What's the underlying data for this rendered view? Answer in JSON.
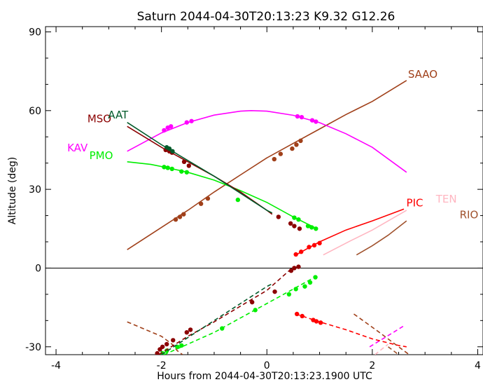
{
  "chart_data": {
    "type": "line",
    "title": "Saturn 2044-04-30T20:13:23  K9.32  G12.26",
    "xlabel": "Hours from 2044-04-30T20:13:23.1900 UTC",
    "ylabel": "Altitude (deg)",
    "xlim": [
      -4.2,
      4.1
    ],
    "ylim": [
      -33,
      92
    ],
    "xticks": [
      -4,
      -2,
      0,
      2,
      4
    ],
    "yticks": [
      -30,
      0,
      30,
      60,
      90
    ],
    "grid": false,
    "reference_line_y": 0,
    "series": [
      {
        "name": "SAAO",
        "color": "#a0401a",
        "label_at": [
          2.65,
          72.5
        ],
        "points": [
          [
            -2.65,
            7
          ],
          [
            -2.0,
            15.5
          ],
          [
            -1.5,
            22
          ],
          [
            -1.0,
            29
          ],
          [
            -0.5,
            35.5
          ],
          [
            0.0,
            42
          ],
          [
            0.5,
            47.5
          ],
          [
            1.0,
            53
          ],
          [
            1.5,
            58.5
          ],
          [
            2.0,
            63.5
          ],
          [
            2.65,
            71.5
          ]
        ],
        "dots": [
          [
            -1.73,
            18.5
          ],
          [
            -1.65,
            19.5
          ],
          [
            -1.58,
            20.5
          ],
          [
            -1.25,
            24.5
          ],
          [
            -1.12,
            26.5
          ],
          [
            0.14,
            41.5
          ],
          [
            0.26,
            43.5
          ],
          [
            0.48,
            45.5
          ],
          [
            0.56,
            47
          ],
          [
            0.64,
            48.5
          ]
        ]
      },
      {
        "name": "",
        "color": "#a0401a",
        "style": "dashed",
        "points": [
          [
            -2.65,
            -20.5
          ],
          [
            -2.0,
            -26
          ],
          [
            -1.8,
            -29
          ],
          [
            -1.7,
            -31.5
          ],
          [
            -1.6,
            -33
          ]
        ]
      },
      {
        "name": "",
        "color": "#a0401a",
        "style": "dashed",
        "points": [
          [
            1.65,
            -17.5
          ],
          [
            2.1,
            -24
          ],
          [
            2.4,
            -28.5
          ],
          [
            2.6,
            -31.5
          ],
          [
            2.7,
            -33
          ]
        ]
      },
      {
        "name": "KAV",
        "color": "#ff00ff",
        "label_at": [
          -3.4,
          44.5
        ],
        "points": [
          [
            -2.65,
            44.5
          ],
          [
            -2.0,
            51.5
          ],
          [
            -1.5,
            55.5
          ],
          [
            -1.0,
            58.3
          ],
          [
            -0.5,
            59.8
          ],
          [
            -0.3,
            60
          ],
          [
            0.0,
            59.8
          ],
          [
            0.5,
            58.2
          ],
          [
            1.0,
            55.4
          ],
          [
            1.5,
            51.2
          ],
          [
            2.0,
            46
          ],
          [
            2.65,
            36.5
          ]
        ],
        "dots": [
          [
            -1.95,
            52.5
          ],
          [
            -1.88,
            53.5
          ],
          [
            -1.82,
            54
          ],
          [
            -1.52,
            55.5
          ],
          [
            -1.43,
            56
          ],
          [
            0.58,
            57.8
          ],
          [
            0.66,
            57.5
          ],
          [
            0.86,
            56.3
          ],
          [
            0.93,
            55.8
          ]
        ]
      },
      {
        "name": "",
        "color": "#ff00ff",
        "style": "dashed",
        "points": [
          [
            1.95,
            -30
          ],
          [
            2.4,
            -24.5
          ],
          [
            2.6,
            -22
          ]
        ]
      },
      {
        "name": "PMO",
        "color": "#00ee00",
        "label_at": [
          -2.92,
          41.5
        ],
        "points": [
          [
            -2.65,
            40.5
          ],
          [
            -2.2,
            39.5
          ],
          [
            -1.9,
            38.3
          ],
          [
            -1.5,
            36.5
          ],
          [
            -1.0,
            33.5
          ],
          [
            -0.5,
            29.5
          ],
          [
            0.0,
            25
          ],
          [
            0.5,
            19.5
          ],
          [
            0.95,
            15
          ]
        ],
        "dots": [
          [
            -1.95,
            38.5
          ],
          [
            -1.88,
            38.2
          ],
          [
            -1.8,
            37.8
          ],
          [
            -1.62,
            36.8
          ],
          [
            -1.52,
            36.5
          ],
          [
            -0.55,
            26
          ],
          [
            0.52,
            19.2
          ],
          [
            0.6,
            18.5
          ],
          [
            0.78,
            16
          ],
          [
            0.85,
            15.5
          ],
          [
            0.93,
            15
          ]
        ]
      },
      {
        "name": "",
        "color": "#00ee00",
        "style": "dashed",
        "points": [
          [
            -1.95,
            -33
          ],
          [
            -1.5,
            -29
          ],
          [
            -1.0,
            -24.5
          ],
          [
            -0.5,
            -19
          ],
          [
            0.0,
            -13.5
          ],
          [
            0.5,
            -8
          ],
          [
            0.95,
            -3
          ]
        ],
        "dots": [
          [
            -1.98,
            -32.5
          ],
          [
            -1.9,
            -31.5
          ],
          [
            -1.7,
            -30
          ],
          [
            -1.62,
            -29.5
          ],
          [
            -0.85,
            -23
          ],
          [
            -0.22,
            -16
          ],
          [
            0.42,
            -10
          ],
          [
            0.55,
            -8
          ],
          [
            0.72,
            -7
          ],
          [
            0.82,
            -5.5
          ],
          [
            0.92,
            -3.5
          ]
        ]
      },
      {
        "name": "MSO",
        "color": "#8b0000",
        "label_at": [
          -2.95,
          55.5
        ],
        "points": [
          [
            -2.65,
            54
          ],
          [
            -2.0,
            46
          ],
          [
            -1.5,
            40.5
          ],
          [
            -1.0,
            35
          ],
          [
            -0.5,
            29
          ],
          [
            0.0,
            22
          ],
          [
            0.1,
            20.5
          ]
        ],
        "dots": [
          [
            -1.92,
            45
          ],
          [
            -1.85,
            44.5
          ],
          [
            -1.8,
            44
          ],
          [
            -1.57,
            40.5
          ],
          [
            -1.48,
            39
          ],
          [
            0.22,
            19.5
          ],
          [
            0.45,
            17
          ],
          [
            0.52,
            16
          ],
          [
            0.62,
            15
          ]
        ]
      },
      {
        "name": "",
        "color": "#8b0000",
        "style": "dashed",
        "points": [
          [
            -2.05,
            -33
          ],
          [
            -1.5,
            -26
          ],
          [
            -1.0,
            -20.5
          ],
          [
            -0.5,
            -14.5
          ],
          [
            0.0,
            -8.5
          ],
          [
            0.45,
            -0.5
          ],
          [
            0.6,
            0.5
          ]
        ],
        "dots": [
          [
            -2.08,
            -32.5
          ],
          [
            -2.03,
            -31
          ],
          [
            -1.98,
            -30
          ],
          [
            -1.9,
            -29
          ],
          [
            -1.78,
            -27.5
          ],
          [
            -1.52,
            -24.5
          ],
          [
            -1.45,
            -23.5
          ],
          [
            -0.28,
            -13
          ],
          [
            0.15,
            -9
          ],
          [
            0.46,
            -1
          ],
          [
            0.52,
            0
          ],
          [
            0.6,
            0.5
          ]
        ]
      },
      {
        "name": "AAT",
        "color": "#005a2a",
        "label_at": [
          -2.63,
          57
        ],
        "points": [
          [
            -2.65,
            55.5
          ],
          [
            -2.0,
            47
          ],
          [
            -1.5,
            41
          ],
          [
            -1.0,
            35
          ],
          [
            -0.5,
            28.5
          ],
          [
            0.0,
            22
          ],
          [
            0.1,
            21
          ]
        ],
        "dots": [
          [
            -1.9,
            46
          ],
          [
            -1.85,
            45.5
          ],
          [
            -1.79,
            44.5
          ]
        ]
      },
      {
        "name": "",
        "color": "#005a2a",
        "style": "dashed",
        "points": [
          [
            -2.0,
            -33
          ],
          [
            -1.5,
            -26.5
          ],
          [
            -1.0,
            -20
          ],
          [
            -0.5,
            -13.5
          ],
          [
            0.0,
            -7
          ],
          [
            0.1,
            -6
          ]
        ]
      },
      {
        "name": "PIC",
        "color": "#ff0000",
        "label_at": [
          2.62,
          23.5
        ],
        "points": [
          [
            0.55,
            5
          ],
          [
            1.0,
            10
          ],
          [
            1.5,
            14.5
          ],
          [
            2.0,
            18
          ],
          [
            2.6,
            22.5
          ]
        ],
        "dots": [
          [
            0.55,
            5.2
          ],
          [
            0.65,
            6.2
          ],
          [
            0.8,
            8
          ],
          [
            0.9,
            8.7
          ],
          [
            1.0,
            9.5
          ]
        ]
      },
      {
        "name": "",
        "color": "#ff0000",
        "style": "dashed",
        "points": [
          [
            0.55,
            -17.5
          ],
          [
            1.0,
            -20.5
          ],
          [
            1.5,
            -23.5
          ],
          [
            2.0,
            -27
          ],
          [
            2.5,
            -29.5
          ],
          [
            2.65,
            -30
          ]
        ],
        "dots": [
          [
            0.57,
            -17.5
          ],
          [
            0.67,
            -18.3
          ],
          [
            0.88,
            -19.8
          ],
          [
            0.94,
            -20.3
          ],
          [
            1.02,
            -20.8
          ]
        ]
      },
      {
        "name": "TEN",
        "color": "#ffb6c1",
        "label_at": [
          3.18,
          25
        ],
        "points": [
          [
            1.07,
            5
          ],
          [
            1.6,
            10.5
          ],
          [
            2.0,
            14.5
          ],
          [
            2.65,
            22
          ]
        ]
      },
      {
        "name": "",
        "color": "#ffb6c1",
        "style": "dashed",
        "points": [
          [
            2.05,
            -33
          ],
          [
            2.3,
            -29
          ]
        ]
      },
      {
        "name": "RIO",
        "color": "#a0522d",
        "label_at": [
          3.63,
          19
        ],
        "points": [
          [
            1.7,
            5
          ],
          [
            2.0,
            8.5
          ],
          [
            2.3,
            12.5
          ],
          [
            2.65,
            18
          ]
        ]
      },
      {
        "name": "",
        "color": "#a0522d",
        "style": "dashed",
        "points": [
          [
            2.3,
            -30
          ],
          [
            2.5,
            -33
          ]
        ]
      }
    ]
  }
}
